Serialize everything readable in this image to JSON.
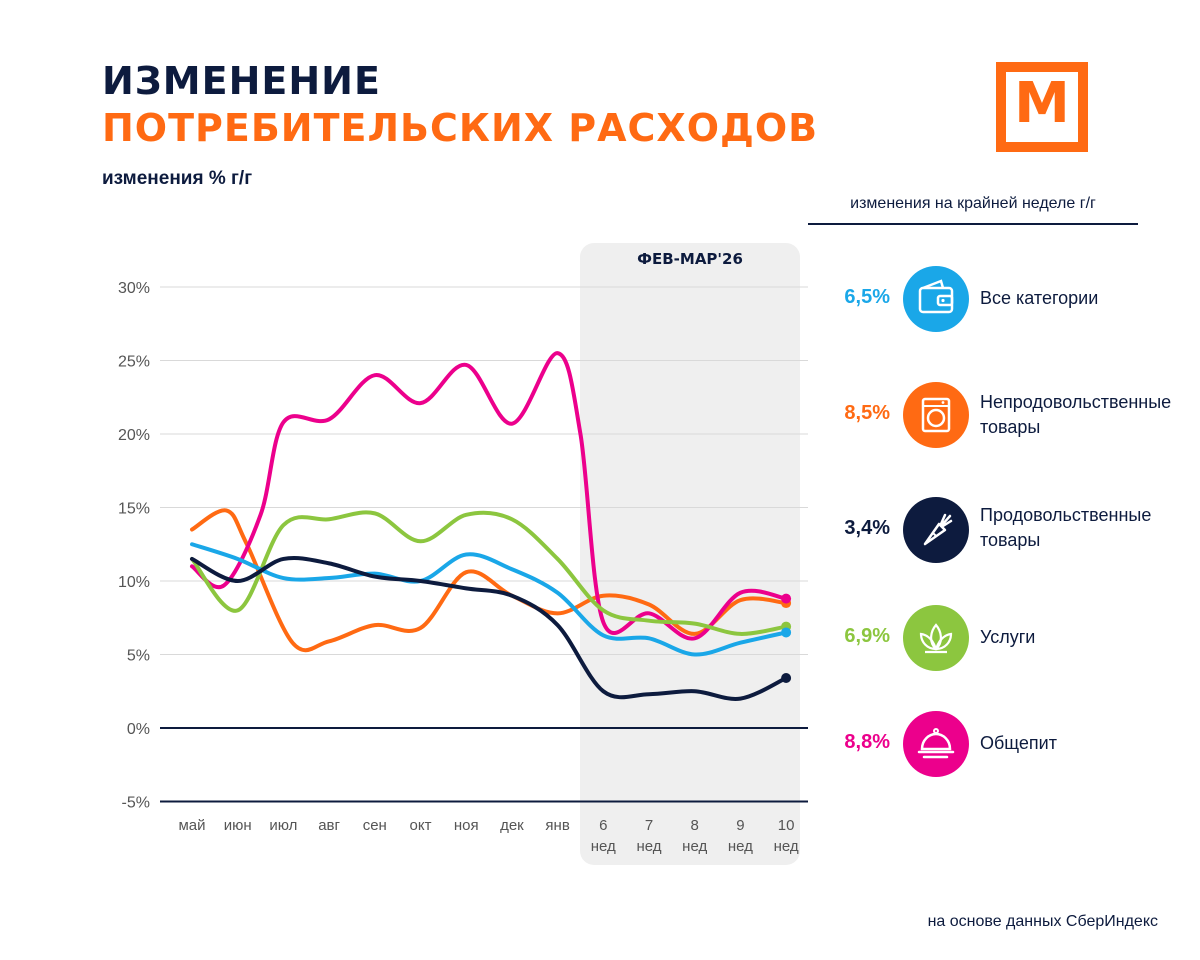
{
  "header": {
    "title_line1": "ИЗМЕНЕНИЕ",
    "title_line2": "ПОТРЕБИТЕЛЬСКИХ РАСХОДОВ",
    "subtitle": "изменения % г/г",
    "logo_letter": "М"
  },
  "legend": {
    "heading": "изменения на крайней неделе г/г",
    "items": [
      {
        "value": "6,5%",
        "name": "Все категории",
        "color": "#1aa7e8",
        "icon": "wallet-icon"
      },
      {
        "value": "8,5%",
        "name": "Непродовольственные товары",
        "color": "#ff6a13",
        "icon": "washing-machine-icon"
      },
      {
        "value": "3,4%",
        "name": "Продовольственные товары",
        "color": "#0d1b3e",
        "icon": "carrot-icon"
      },
      {
        "value": "6,9%",
        "name": "Услуги",
        "color": "#8cc63f",
        "icon": "lotus-icon"
      },
      {
        "value": "8,8%",
        "name": "Общепит",
        "color": "#ec008c",
        "icon": "cloche-icon"
      }
    ]
  },
  "source": "на основе данных СберИндекс",
  "chart_data": {
    "type": "line",
    "shaded_period_label": "ФЕВ-МАР'26",
    "x_labels": [
      [
        "май"
      ],
      [
        "июн"
      ],
      [
        "июл"
      ],
      [
        "авг"
      ],
      [
        "сен"
      ],
      [
        "окт"
      ],
      [
        "ноя"
      ],
      [
        "дек"
      ],
      [
        "янв"
      ],
      [
        "6",
        "нед"
      ],
      [
        "7",
        "нед"
      ],
      [
        "8",
        "нед"
      ],
      [
        "9",
        "нед"
      ],
      [
        "10",
        "нед"
      ]
    ],
    "y_ticks": [
      "30%",
      "25%",
      "20%",
      "15%",
      "10%",
      "5%",
      "0%",
      "-5%"
    ],
    "y_tick_values": [
      30,
      25,
      20,
      15,
      10,
      5,
      0,
      -5
    ],
    "ylim": [
      -5,
      30
    ],
    "grid": true,
    "series": [
      {
        "name": "Непродовольственные товары",
        "color": "#ff6a13",
        "points": [
          [
            0,
            13.5
          ],
          [
            0.75,
            14.8
          ],
          [
            1.2,
            12.5
          ],
          [
            2.2,
            5.8
          ],
          [
            3,
            5.9
          ],
          [
            4,
            7
          ],
          [
            5,
            6.8
          ],
          [
            6,
            10.6
          ],
          [
            7,
            9
          ],
          [
            8,
            7.8
          ],
          [
            9,
            9
          ],
          [
            10,
            8.4
          ],
          [
            11,
            6.4
          ],
          [
            12,
            8.7
          ],
          [
            13,
            8.5
          ]
        ]
      },
      {
        "name": "Общепит",
        "color": "#ec008c",
        "points": [
          [
            0,
            11
          ],
          [
            0.7,
            9.7
          ],
          [
            1.5,
            14.5
          ],
          [
            2,
            20.8
          ],
          [
            3,
            21
          ],
          [
            4,
            24
          ],
          [
            5,
            22.1
          ],
          [
            6,
            24.7
          ],
          [
            7,
            20.7
          ],
          [
            8,
            25.5
          ],
          [
            8.5,
            20
          ],
          [
            9,
            7.2
          ],
          [
            10,
            7.8
          ],
          [
            11,
            6.1
          ],
          [
            12,
            9.2
          ],
          [
            13,
            8.8
          ]
        ]
      },
      {
        "name": "Услуги",
        "color": "#8cc63f",
        "points": [
          [
            0,
            11.5
          ],
          [
            1,
            8
          ],
          [
            2,
            13.8
          ],
          [
            3,
            14.2
          ],
          [
            4,
            14.6
          ],
          [
            5,
            12.7
          ],
          [
            6,
            14.5
          ],
          [
            7,
            14.2
          ],
          [
            8,
            11.5
          ],
          [
            9,
            8
          ],
          [
            10,
            7.3
          ],
          [
            11,
            7.1
          ],
          [
            12,
            6.4
          ],
          [
            13,
            6.9
          ]
        ]
      },
      {
        "name": "Все категории",
        "color": "#1aa7e8",
        "points": [
          [
            0,
            12.5
          ],
          [
            1,
            11.5
          ],
          [
            2,
            10.2
          ],
          [
            3,
            10.2
          ],
          [
            4,
            10.5
          ],
          [
            5,
            10
          ],
          [
            6,
            11.8
          ],
          [
            7,
            10.8
          ],
          [
            8,
            9.2
          ],
          [
            9,
            6.3
          ],
          [
            10,
            6.1
          ],
          [
            11,
            5.0
          ],
          [
            12,
            5.8
          ],
          [
            13,
            6.5
          ]
        ]
      },
      {
        "name": "Продовольственные товары",
        "color": "#0d1b3e",
        "points": [
          [
            0,
            11.5
          ],
          [
            1,
            10
          ],
          [
            2,
            11.5
          ],
          [
            3,
            11.2
          ],
          [
            4,
            10.3
          ],
          [
            5,
            10
          ],
          [
            6,
            9.5
          ],
          [
            7,
            9
          ],
          [
            8,
            7
          ],
          [
            9,
            2.5
          ],
          [
            10,
            2.3
          ],
          [
            11,
            2.5
          ],
          [
            12,
            2.0
          ],
          [
            13,
            3.4
          ]
        ]
      }
    ]
  }
}
